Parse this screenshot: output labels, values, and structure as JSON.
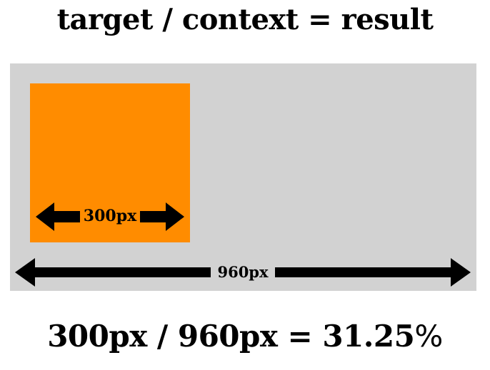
{
  "title": "target / context = result",
  "target": {
    "label": "300px",
    "color": "#ff8c00"
  },
  "context": {
    "label": "960px",
    "color": "#d2d2d2"
  },
  "formula": {
    "expression": "300px / 960px = 31.25",
    "percent_sign": "%"
  }
}
